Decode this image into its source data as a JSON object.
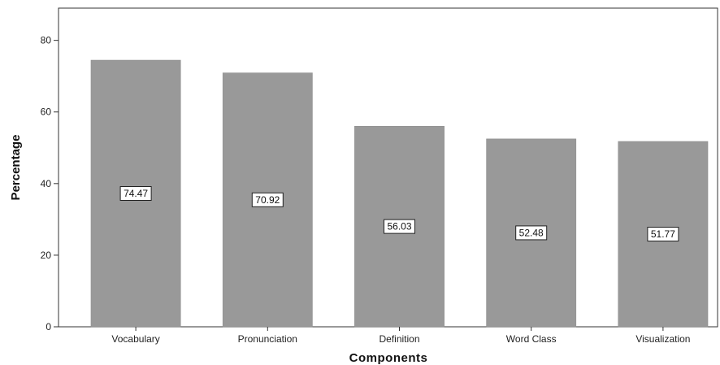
{
  "chart_data": {
    "type": "bar",
    "title": "",
    "xlabel": "Components",
    "ylabel": "Percentage",
    "categories": [
      "Vocabulary",
      "Pronunciation",
      "Definition",
      "Word Class",
      "Visualization"
    ],
    "values": [
      74.47,
      70.92,
      56.03,
      52.48,
      51.77
    ],
    "data_labels": [
      "74.47",
      "70.92",
      "56.03",
      "52.48",
      "51.77"
    ],
    "yticks": [
      0,
      20,
      40,
      60,
      80
    ],
    "ylim": [
      0,
      89
    ],
    "grid": false,
    "bar_color": "#999999",
    "legend": "none"
  }
}
